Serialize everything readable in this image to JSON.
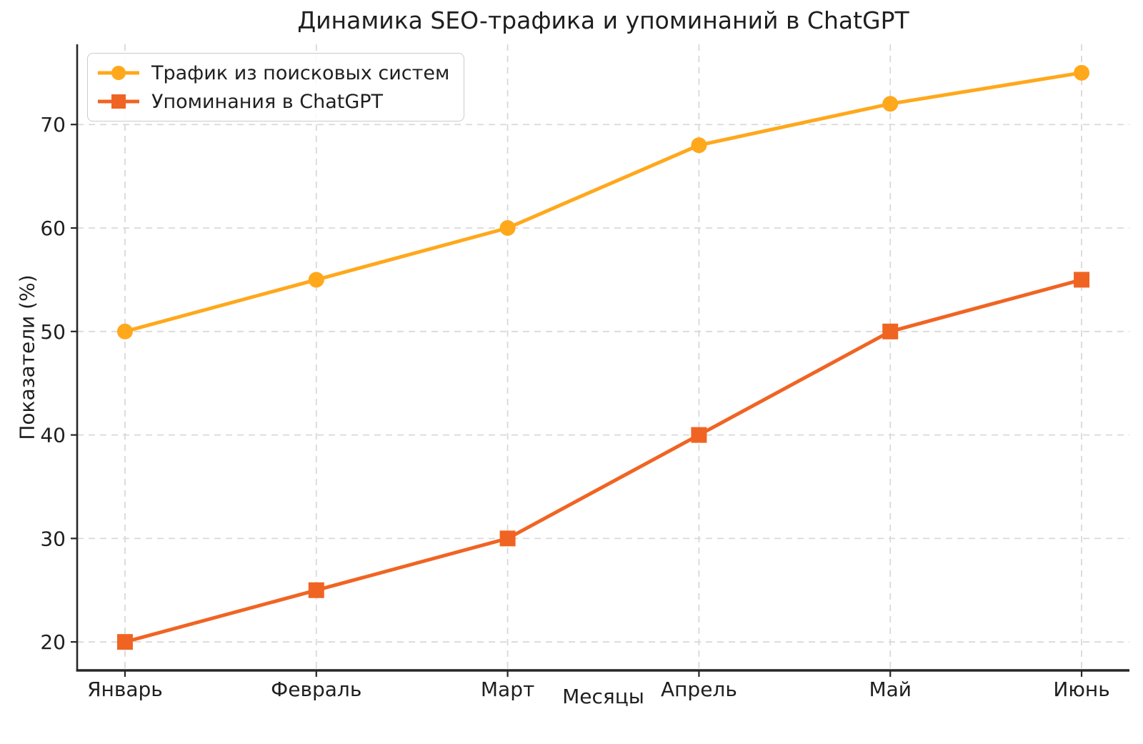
{
  "chart_data": {
    "type": "line",
    "title": "Динамика SEO-трафика и упоминаний в ChatGPT",
    "xlabel": "Месяцы",
    "ylabel": "Показатели (%)",
    "categories": [
      "Январь",
      "Февраль",
      "Март",
      "Апрель",
      "Май",
      "Июнь"
    ],
    "series": [
      {
        "name": "Трафик из поисковых систем",
        "values": [
          50,
          55,
          60,
          68,
          72,
          75
        ],
        "color": "#FFA81C",
        "marker": "circle"
      },
      {
        "name": "Упоминания в ChatGPT",
        "values": [
          20,
          25,
          30,
          40,
          50,
          55
        ],
        "color": "#F06423",
        "marker": "square"
      }
    ],
    "yticks": [
      20,
      30,
      40,
      50,
      60,
      70
    ],
    "ylim": [
      17.25,
      77.75
    ],
    "xlim": [
      -0.25,
      5.25
    ],
    "grid": true,
    "grid_style": "dashed",
    "legend_position": "upper-left",
    "colors": {
      "grid": "#d9d9d9",
      "axis": "#262626",
      "text": "#1f1f1f",
      "background": "#ffffff"
    }
  }
}
